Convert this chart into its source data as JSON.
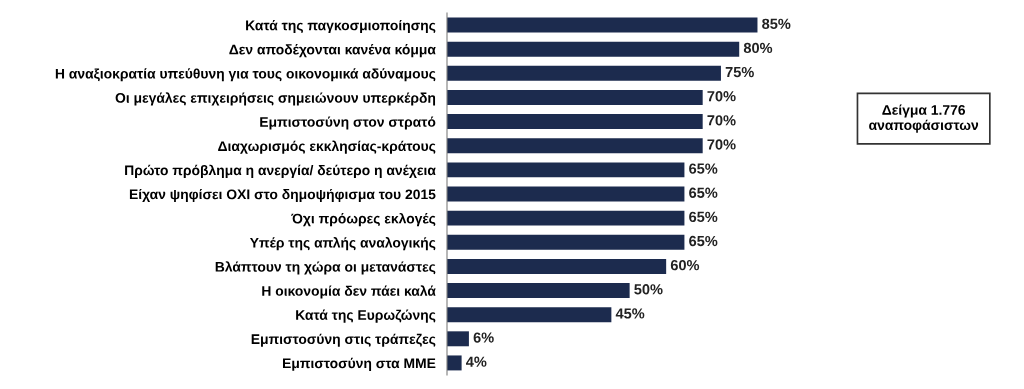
{
  "chart_data": {
    "type": "bar",
    "orientation": "horizontal",
    "categories": [
      "Κατά της παγκοσμιοποίησης",
      "Δεν αποδέχονται κανένα κόμμα",
      "Η αναξιοκρατία υπεύθυνη για τους οικονομικά αδύναμους",
      "Οι μεγάλες επιχειρήσεις σημειώνουν υπερκέρδη",
      "Εμπιστοσύνη στον στρατό",
      "Διαχωρισμός εκκλησίας-κράτους",
      "Πρώτο πρόβλημα η ανεργία/ δεύτερο η ανέχεια",
      "Είχαν ψηφίσει ΟΧΙ στο δημοψήφισμα του 2015",
      "Όχι πρόωρες εκλογές",
      "Υπέρ της απλής αναλογικής",
      "Βλάπτουν τη χώρα οι μετανάστες",
      "Η οικονομία δεν πάει καλά",
      "Κατά της Ευρωζώνης",
      "Εμπιστοσύνη στις τράπεζες",
      "Εμπιστοσύνη στα ΜΜΕ"
    ],
    "values": [
      85,
      80,
      75,
      70,
      70,
      70,
      65,
      65,
      65,
      65,
      60,
      50,
      45,
      6,
      4
    ],
    "value_labels": [
      "85%",
      "80%",
      "75%",
      "70%",
      "70%",
      "70%",
      "65%",
      "65%",
      "65%",
      "65%",
      "60%",
      "50%",
      "45%",
      "6%",
      "4%"
    ],
    "color": "#1c2b4e",
    "grid": false,
    "legend": false,
    "annotations": [
      "Δείγμα 1.776\nαναποφάσιστων"
    ]
  }
}
